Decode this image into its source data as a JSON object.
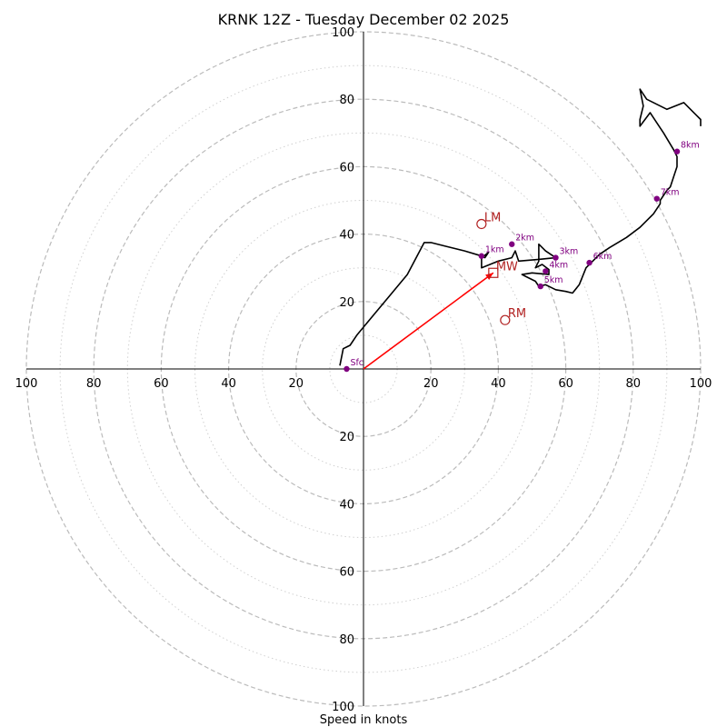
{
  "chart_data": {
    "type": "hodograph",
    "title": "KRNK 12Z - Tuesday December 02 2025",
    "xlabel": "Speed in knots",
    "axis_range": [
      -100,
      100
    ],
    "ring_values": [
      20,
      40,
      60,
      80,
      100
    ],
    "minor_ring_values": [
      10,
      30,
      50,
      70,
      90
    ],
    "x_tick_labels": [
      "100",
      "80",
      "60",
      "40",
      "20",
      "20",
      "40",
      "60",
      "80",
      "100"
    ],
    "x_tick_values": [
      -100,
      -80,
      -60,
      -40,
      -20,
      20,
      40,
      60,
      80,
      100
    ],
    "y_tick_labels": [
      "100",
      "80",
      "60",
      "40",
      "20",
      "20",
      "40",
      "60",
      "80",
      "100"
    ],
    "y_tick_values": [
      100,
      80,
      60,
      40,
      20,
      -20,
      -40,
      -60,
      -80,
      -100
    ],
    "colors": {
      "trace": "#000000",
      "height_marker": "#800080",
      "motion": "#b22222",
      "mean_wind_vector": "#ff0000",
      "ring": "#bbbbbb"
    },
    "trace": [
      [
        -7,
        1
      ],
      [
        -6,
        6
      ],
      [
        -4,
        7
      ],
      [
        -2,
        10
      ],
      [
        3,
        16
      ],
      [
        8,
        22
      ],
      [
        13,
        28
      ],
      [
        18,
        37.5
      ],
      [
        20,
        37.5
      ],
      [
        24,
        36.5
      ],
      [
        30,
        35
      ],
      [
        35,
        33.5
      ],
      [
        36,
        33
      ],
      [
        37,
        34.5
      ],
      [
        35,
        33
      ],
      [
        35,
        30
      ],
      [
        40,
        32
      ],
      [
        44,
        33
      ],
      [
        45,
        35
      ],
      [
        46,
        32
      ],
      [
        52,
        32.5
      ],
      [
        57,
        33
      ],
      [
        54,
        35
      ],
      [
        52,
        37
      ],
      [
        52,
        32
      ],
      [
        51,
        30
      ],
      [
        53,
        31
      ],
      [
        55,
        29.5
      ],
      [
        55,
        28
      ],
      [
        50,
        28.5
      ],
      [
        47,
        28
      ],
      [
        48,
        27.5
      ],
      [
        51,
        26
      ],
      [
        52,
        24.5
      ],
      [
        54,
        25
      ],
      [
        57,
        23.5
      ],
      [
        60,
        23
      ],
      [
        62,
        22.5
      ],
      [
        64,
        25
      ],
      [
        66,
        30
      ],
      [
        68,
        32
      ],
      [
        70,
        34
      ],
      [
        73,
        36
      ],
      [
        78,
        39
      ],
      [
        82,
        42
      ],
      [
        86,
        46
      ],
      [
        88,
        49
      ],
      [
        88,
        50
      ],
      [
        90,
        53
      ],
      [
        91,
        54
      ],
      [
        92,
        57
      ],
      [
        93,
        60
      ],
      [
        93,
        63
      ],
      [
        92,
        65
      ],
      [
        89,
        70
      ],
      [
        87,
        73
      ],
      [
        85,
        76
      ],
      [
        82,
        72
      ],
      [
        82,
        74
      ],
      [
        83,
        78
      ],
      [
        82,
        83
      ],
      [
        84,
        80
      ],
      [
        90,
        77
      ],
      [
        95,
        79
      ],
      [
        100,
        74
      ],
      [
        100,
        72
      ]
    ],
    "height_markers": [
      {
        "label": "Sfc",
        "u": -5,
        "v": 0
      },
      {
        "label": "1km",
        "u": 35,
        "v": 33.5
      },
      {
        "label": "2km",
        "u": 44,
        "v": 37
      },
      {
        "label": "3km",
        "u": 57,
        "v": 33
      },
      {
        "label": "4km",
        "u": 54,
        "v": 29
      },
      {
        "label": "5km",
        "u": 52.5,
        "v": 24.5
      },
      {
        "label": "6km",
        "u": 67,
        "v": 31.5
      },
      {
        "label": "7km",
        "u": 87,
        "v": 50.5
      },
      {
        "label": "8km",
        "u": 93,
        "v": 64.5
      }
    ],
    "storm_motions": [
      {
        "label": "LM",
        "u": 35,
        "v": 43,
        "marker": "circle"
      },
      {
        "label": "RM",
        "u": 42,
        "v": 14.5,
        "marker": "circle"
      },
      {
        "label": "MW",
        "u": 38.5,
        "v": 28.5,
        "marker": "square"
      }
    ],
    "mean_wind_vector": {
      "from": [
        0,
        0
      ],
      "to": [
        38.5,
        28.5
      ]
    }
  }
}
